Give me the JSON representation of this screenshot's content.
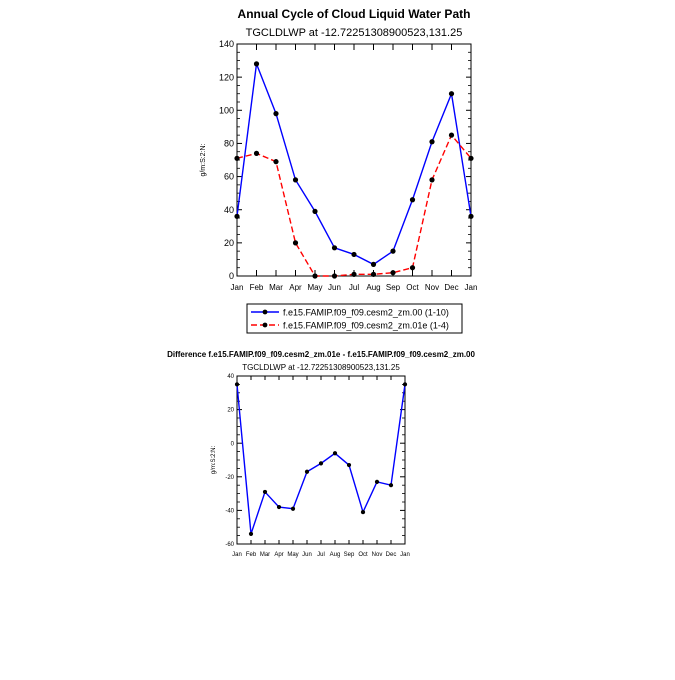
{
  "chart_data": [
    {
      "type": "line",
      "title": "Annual Cycle of Cloud Liquid Water Path",
      "subtitle": "TGCLDLWP at -12.72251308900523,131.25",
      "xlabel": "",
      "ylabel": "g/m:S:2:N:",
      "categories": [
        "Jan",
        "Feb",
        "Mar",
        "Apr",
        "May",
        "Jun",
        "Jul",
        "Aug",
        "Sep",
        "Oct",
        "Nov",
        "Dec",
        "Jan"
      ],
      "ylim": [
        0,
        140
      ],
      "yticks": [
        0,
        20,
        40,
        60,
        80,
        100,
        120,
        140
      ],
      "grid": false,
      "legend_position": "bottom",
      "series": [
        {
          "name": "f.e15.FAMIP.f09_f09.cesm2_zm.00 (1-10)",
          "color": "#0000ff",
          "dash": "solid",
          "values": [
            36,
            128,
            98,
            58,
            39,
            17,
            13,
            7,
            15,
            46,
            81,
            110,
            36
          ]
        },
        {
          "name": "f.e15.FAMIP.f09_f09.cesm2_zm.01e (1-4)",
          "color": "#ff0000",
          "dash": "dashed",
          "values": [
            71,
            74,
            69,
            20,
            0,
            0,
            1,
            1,
            2,
            5,
            58,
            85,
            71
          ]
        }
      ]
    },
    {
      "type": "line",
      "title": "Difference f.e15.FAMIP.f09_f09.cesm2_zm.01e - f.e15.FAMIP.f09_f09.cesm2_zm.00",
      "subtitle": "TGCLDLWP at -12.72251308900523,131.25",
      "xlabel": "",
      "ylabel": "g/m:S:2:N:",
      "categories": [
        "Jan",
        "Feb",
        "Mar",
        "Apr",
        "May",
        "Jun",
        "Jul",
        "Aug",
        "Sep",
        "Oct",
        "Nov",
        "Dec",
        "Jan"
      ],
      "ylim": [
        -60,
        40
      ],
      "yticks": [
        -60,
        -40,
        -20,
        0,
        20,
        40
      ],
      "grid": false,
      "series": [
        {
          "color": "#0000ff",
          "dash": "solid",
          "values": [
            35,
            -54,
            -29,
            -38,
            -39,
            -17,
            -12,
            -6,
            -13,
            -41,
            -23,
            -25,
            35
          ]
        }
      ]
    }
  ]
}
